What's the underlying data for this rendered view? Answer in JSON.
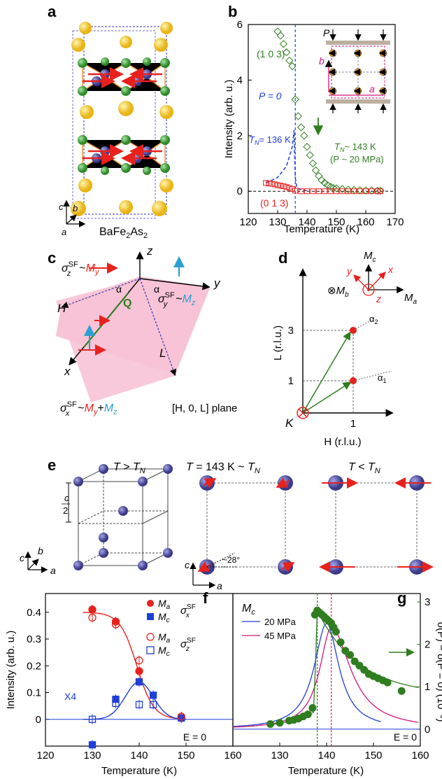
{
  "panels": {
    "a": {
      "label": "a",
      "compound_prefix": "BaFe",
      "compound_sub1": "2",
      "compound_mid": "As",
      "compound_sub2": "2",
      "axes": {
        "c": "c",
        "b": "b",
        "a": "a"
      }
    },
    "b": {
      "label": "b",
      "xlabel": "Temperature (K)",
      "ylabel": "Intensity (arb. u.)",
      "xticks": [
        "120",
        "130",
        "140",
        "150",
        "160",
        "170"
      ],
      "yticks": [
        "0",
        "2",
        "4",
        "6"
      ],
      "series_103": "(1 0 3)",
      "series_013": "(0 1 3)",
      "p0": "P = 0",
      "tn136": "T",
      "tn136_sub": "N",
      "tn136_val": "= 136 K",
      "tn143": "T",
      "tn143_sub": "N",
      "tn143_val": "~ 143 K",
      "p20": "(P ~ 20 MPa)",
      "inset_p": "P",
      "inset_a": "a",
      "inset_b": "b"
    },
    "c": {
      "label": "c",
      "z": "z",
      "x": "x",
      "y": "y",
      "H": "H",
      "L": "L",
      "Q": "Q",
      "alpha": "α",
      "sz": "σ",
      "sz_sub": "z",
      "sz_sup": "SF",
      "sz_tail": "~",
      "sz_M": "M",
      "sz_Msub": "y",
      "sy": "σ",
      "sy_sub": "y",
      "sy_sup": "SF",
      "sy_tail": "~",
      "sy_M": "M",
      "sy_Msub": "z",
      "sx": "σ",
      "sx_sub": "x",
      "sx_sup": "SF",
      "sx_tail": "~",
      "sx_M1": "M",
      "sx_M1sub": "y",
      "sx_plus": "+",
      "sx_M2": "M",
      "sx_M2sub": "z",
      "plane": "[H, 0, L] plane"
    },
    "d": {
      "label": "d",
      "xlabel": "H (r.l.u.)",
      "ylabel": "L (r.l.u.)",
      "xtick": "1",
      "yticks": [
        "1",
        "3"
      ],
      "K": "K",
      "Mc": "M",
      "Mc_sub": "c",
      "Ma": "M",
      "Ma_sub": "a",
      "Mb_pre": "⊗",
      "Mb": "M",
      "Mb_sub": "b",
      "x": "x",
      "y": "y",
      "z": "z",
      "alpha1": "α",
      "alpha1_sub": "1",
      "alpha2": "α",
      "alpha2_sub": "2"
    },
    "e": {
      "label": "e",
      "t1": "T",
      "t1_op": " > ",
      "t1_T": "T",
      "t1_sub": "N",
      "t2": "T",
      "t2_op": " = 143 K ~ ",
      "t2_T": "T",
      "t2_sub": "N",
      "t3": "T",
      "t3_op": " < ",
      "t3_T": "T",
      "t3_sub": "N",
      "c_half_num": "c",
      "c_half_den": "2",
      "angle": "~28°",
      "axes": {
        "c": "c",
        "b": "b",
        "a": "a"
      }
    },
    "f": {
      "label": "f",
      "xlabel": "Temperature (K)",
      "ylabel": "Intensity (arb. u.)",
      "xticks": [
        "120",
        "130",
        "140",
        "150",
        "160"
      ],
      "yticks": [
        "0",
        "0.1",
        "0.2",
        "0.3",
        "0.4"
      ],
      "legend_Ma": "M",
      "legend_Ma_sub": "a",
      "legend_Mc": "M",
      "legend_Mc_sub": "c",
      "legend_sx": "σ",
      "legend_sx_sub": "x",
      "legend_sx_sup": "SF",
      "legend_sz": "σ",
      "legend_sz_sub": "z",
      "legend_sz_sup": "SF",
      "x4": "X4",
      "e0": "E = 0"
    },
    "g": {
      "label": "g",
      "xlabel": "Temperature (K)",
      "ylabel_right": "δ(P) − δ(P = 0) (10⁻³)",
      "xticks": [
        "130",
        "140",
        "150",
        "160"
      ],
      "yticks": [
        "0",
        "1",
        "2",
        "3"
      ],
      "title": "M",
      "title_sub": "c",
      "legend_20": "20 MPa",
      "legend_45": "45 MPa",
      "e0": "E = 0"
    }
  },
  "colors": {
    "red": "#e8211d",
    "blue": "#1f3fd6",
    "green": "#1a7a1a",
    "dark_green": "#2f7d1f",
    "magenta": "#d6157a",
    "pink_plane": "#f7c3d6",
    "atom_ba": "#f2c22a",
    "atom_fe": "#4b4a9e",
    "atom_as": "#3f9a3a",
    "orange_bond": "#ef9a3a",
    "cyan": "#2b9fd3"
  },
  "chart_data": [
    {
      "panel": "b",
      "type": "scatter",
      "xlabel": "Temperature (K)",
      "ylabel": "Intensity (arb. u.)",
      "xlim": [
        120,
        170
      ],
      "ylim": [
        -0.8,
        6
      ],
      "series": [
        {
          "name": "(1 0 3)",
          "x": [
            130,
            131,
            132,
            133,
            134,
            135,
            136,
            137,
            138,
            139,
            140,
            141,
            142,
            143,
            144,
            145,
            146,
            147,
            148,
            149,
            150,
            152,
            154,
            156,
            158,
            160,
            162,
            164,
            165
          ],
          "values": [
            5.75,
            5.6,
            5.3,
            5.0,
            4.7,
            4.5,
            3.3,
            2.7,
            2.3,
            2.0,
            1.6,
            1.3,
            1.0,
            0.75,
            0.55,
            0.4,
            0.3,
            0.22,
            0.16,
            0.12,
            0.1,
            0.08,
            0.06,
            0.05,
            0.04,
            0.03,
            0.03,
            0.02,
            0.02
          ]
        },
        {
          "name": "(0 1 3)",
          "x": [
            126,
            127,
            128,
            129,
            130,
            131,
            132,
            133,
            134,
            135,
            136,
            138,
            140,
            142,
            144,
            146,
            148,
            150,
            152,
            154,
            156,
            158,
            160,
            162,
            164,
            165
          ],
          "values": [
            0.3,
            0.28,
            0.27,
            0.25,
            0.22,
            0.2,
            0.18,
            0.15,
            0.12,
            0.08,
            0.02,
            0.0,
            0.0,
            0.0,
            0.0,
            0.0,
            0.0,
            0.0,
            0.0,
            0.0,
            0.0,
            0.0,
            0.0,
            0.0,
            0.0,
            0.0
          ]
        }
      ]
    },
    {
      "panel": "f",
      "type": "scatter",
      "xlabel": "Temperature (K)",
      "ylabel": "Intensity (arb. u.)",
      "xlim": [
        120,
        160
      ],
      "ylim": [
        -0.1,
        0.47
      ],
      "series": [
        {
          "name": "Ma σx",
          "x": [
            130,
            135,
            140,
            149
          ],
          "values": [
            0.41,
            0.365,
            0.18,
            0.005
          ]
        },
        {
          "name": "Mc σx",
          "x": [
            130,
            135,
            140,
            143,
            149
          ],
          "values": [
            -0.095,
            0.075,
            0.14,
            0.09,
            0.005
          ]
        },
        {
          "name": "Ma σz",
          "x": [
            130,
            135,
            140,
            149
          ],
          "values": [
            0.38,
            0.355,
            0.22,
            0.01
          ]
        },
        {
          "name": "Mc σz",
          "x": [
            130,
            135,
            140,
            143
          ],
          "values": [
            0.0,
            0.06,
            0.055,
            0.055
          ]
        }
      ]
    },
    {
      "panel": "g",
      "type": "scatter",
      "xlabel": "Temperature (K)",
      "xlim": [
        120,
        160
      ],
      "ylim": [
        -0.4,
        3.2
      ],
      "series": [
        {
          "name": "data",
          "x": [
            128,
            130,
            132,
            133,
            134,
            135,
            136,
            137,
            137.5,
            138,
            138.5,
            139,
            139.5,
            140,
            140.5,
            141,
            141.5,
            142,
            143,
            144,
            145,
            146,
            147,
            148,
            149,
            150,
            151,
            152,
            153,
            156
          ],
          "values": [
            0.12,
            0.15,
            0.2,
            0.22,
            0.25,
            0.3,
            0.35,
            0.5,
            2.7,
            2.8,
            2.75,
            2.7,
            2.65,
            2.6,
            2.55,
            2.5,
            2.4,
            2.3,
            2.05,
            1.85,
            1.75,
            1.6,
            1.5,
            1.4,
            1.3,
            1.25,
            1.2,
            1.15,
            1.1,
            0.9
          ]
        }
      ]
    }
  ]
}
